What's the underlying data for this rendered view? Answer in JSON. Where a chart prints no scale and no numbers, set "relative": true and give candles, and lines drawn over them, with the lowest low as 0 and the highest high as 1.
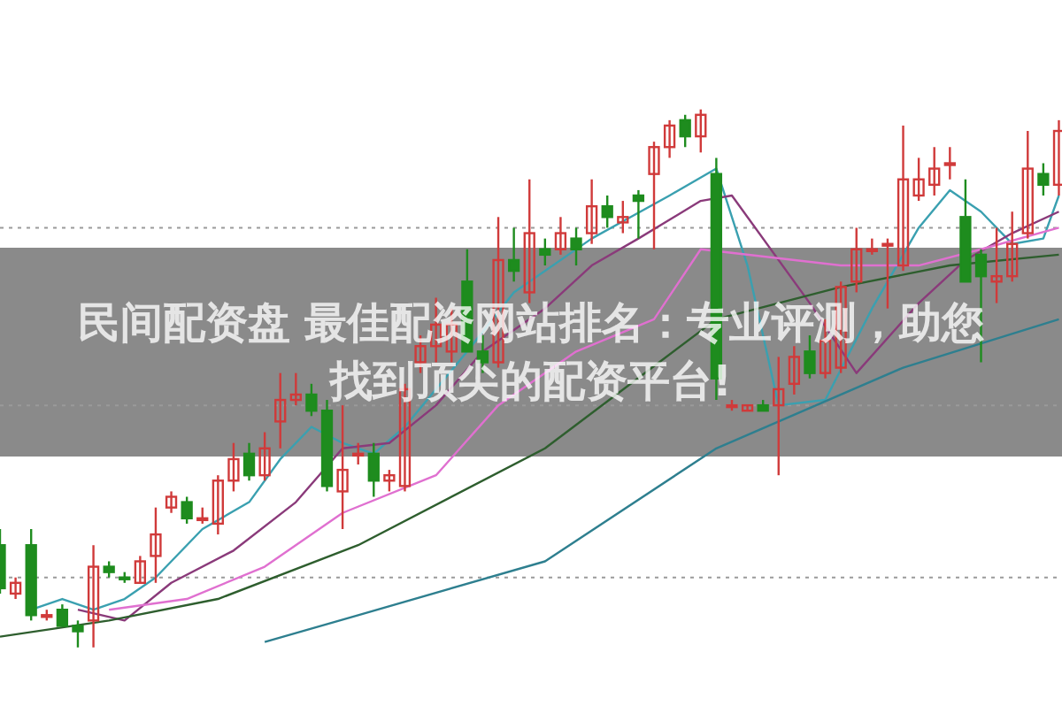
{
  "chart_data": {
    "type": "candlestick",
    "title": "民间配资盘 最佳配资网站排名：专业评测，助您找到顶尖的配资平台!",
    "relative": true,
    "categories": [
      null,
      null,
      null,
      null,
      null,
      null,
      null,
      null,
      null,
      null,
      null,
      null,
      null,
      null,
      null,
      null,
      null,
      null,
      null,
      null,
      null,
      null,
      null,
      null,
      null,
      null,
      null,
      null,
      null,
      null,
      null,
      null,
      null,
      null,
      null,
      null,
      null,
      null,
      null,
      null,
      null,
      null,
      null,
      null,
      null,
      null,
      null,
      null,
      null,
      null,
      null,
      null,
      null,
      null,
      null,
      null,
      null,
      null,
      null,
      null,
      null,
      null,
      null,
      null,
      null,
      null,
      null,
      null,
      null
    ],
    "ohlc": [
      [
        0.19,
        0.22,
        0.1,
        0.11
      ],
      [
        0.1,
        0.13,
        0.09,
        0.12
      ],
      [
        0.19,
        0.22,
        0.05,
        0.06
      ],
      [
        0.06,
        0.07,
        0.05,
        0.06
      ],
      [
        0.07,
        0.08,
        0.04,
        0.04
      ],
      [
        0.04,
        0.05,
        0,
        0.03
      ],
      [
        0.05,
        0.19,
        0,
        0.15
      ],
      [
        0.15,
        0.16,
        0.13,
        0.14
      ],
      [
        0.13,
        0.14,
        0.12,
        0.13
      ],
      [
        0.12,
        0.17,
        0.12,
        0.16
      ],
      [
        0.17,
        0.26,
        0.12,
        0.21
      ],
      [
        0.26,
        0.29,
        0.25,
        0.28
      ],
      [
        0.27,
        0.28,
        0.23,
        0.24
      ],
      [
        0.24,
        0.26,
        0.23,
        0.24
      ],
      [
        0.23,
        0.32,
        0.21,
        0.31
      ],
      [
        0.31,
        0.38,
        0.29,
        0.35
      ],
      [
        0.36,
        0.38,
        0.31,
        0.32
      ],
      [
        0.32,
        0.4,
        0.31,
        0.37
      ],
      [
        0.42,
        0.51,
        0.37,
        0.46
      ],
      [
        0.46,
        0.51,
        0.45,
        0.47
      ],
      [
        0.47,
        0.49,
        0.43,
        0.44
      ],
      [
        0.44,
        0.46,
        0.29,
        0.3
      ],
      [
        0.29,
        0.45,
        0.22,
        0.33
      ],
      [
        0.36,
        0.38,
        0.34,
        0.36
      ],
      [
        0.36,
        0.38,
        0.28,
        0.31
      ],
      [
        0.31,
        0.33,
        0.29,
        0.32
      ],
      [
        0.3,
        0.49,
        0.29,
        0.48
      ],
      [
        0.53,
        0.58,
        0.51,
        0.56
      ],
      [
        0.56,
        0.65,
        0.53,
        0.6
      ],
      [
        0.55,
        0.63,
        0.53,
        0.6
      ],
      [
        0.68,
        0.74,
        0.55,
        0.55
      ],
      [
        0.55,
        0.58,
        0.51,
        0.53
      ],
      [
        0.53,
        0.8,
        0.52,
        0.72
      ],
      [
        0.72,
        0.78,
        0.68,
        0.7
      ],
      [
        0.66,
        0.87,
        0.64,
        0.77
      ],
      [
        0.74,
        0.76,
        0.71,
        0.73
      ],
      [
        0.74,
        0.8,
        0.73,
        0.77
      ],
      [
        0.76,
        0.78,
        0.71,
        0.74
      ],
      [
        0.77,
        0.87,
        0.75,
        0.82
      ],
      [
        0.82,
        0.84,
        0.78,
        0.8
      ],
      [
        0.79,
        0.83,
        0.77,
        0.8
      ],
      [
        0.84,
        0.85,
        0.76,
        0.83
      ],
      [
        0.88,
        0.94,
        0.74,
        0.93
      ],
      [
        0.93,
        0.98,
        0.91,
        0.97
      ],
      [
        0.98,
        0.99,
        0.93,
        0.95
      ],
      [
        0.95,
        1,
        0.92,
        0.99
      ],
      [
        0.88,
        0.91,
        0.46,
        0.5
      ],
      [
        0.45,
        0.46,
        0.44,
        0.45
      ],
      [
        0.44,
        0.45,
        0.44,
        0.45
      ],
      [
        0.45,
        0.46,
        0.44,
        0.44
      ],
      [
        0.45,
        0.54,
        0.32,
        0.48
      ],
      [
        0.49,
        0.56,
        0.47,
        0.54
      ],
      [
        0.55,
        0.58,
        0.5,
        0.51
      ],
      [
        0.51,
        0.61,
        0.5,
        0.57
      ],
      [
        0.52,
        0.68,
        0.51,
        0.67
      ],
      [
        0.68,
        0.78,
        0.66,
        0.74
      ],
      [
        0.74,
        0.76,
        0.73,
        0.74
      ],
      [
        0.75,
        0.76,
        0.63,
        0.75
      ],
      [
        0.71,
        0.97,
        0.7,
        0.87
      ],
      [
        0.84,
        0.91,
        0.83,
        0.87
      ],
      [
        0.86,
        0.93,
        0.84,
        0.89
      ],
      [
        0.9,
        0.93,
        0.87,
        0.9
      ],
      [
        0.8,
        0.87,
        0.68,
        0.68
      ],
      [
        0.73,
        0.74,
        0.53,
        0.69
      ],
      [
        0.68,
        0.78,
        0.64,
        0.69
      ],
      [
        0.69,
        0.81,
        0.68,
        0.75
      ],
      [
        0.77,
        0.96,
        0.76,
        0.89
      ],
      [
        0.88,
        0.9,
        0.84,
        0.86
      ],
      [
        0.86,
        0.98,
        0.84,
        0.96
      ]
    ],
    "colors": [
      "#1e8c1e",
      "#d03a3a",
      "#1e8c1e",
      "#d03a3a",
      "#1e8c1e",
      "#1e8c1e",
      "#d03a3a",
      "#1e8c1e",
      "#1e8c1e",
      "#d03a3a",
      "#d03a3a",
      "#d03a3a",
      "#1e8c1e",
      "#d03a3a",
      "#d03a3a",
      "#d03a3a",
      "#1e8c1e",
      "#d03a3a",
      "#d03a3a",
      "#d03a3a",
      "#1e8c1e",
      "#1e8c1e",
      "#d03a3a",
      "#d03a3a",
      "#1e8c1e",
      "#d03a3a",
      "#d03a3a",
      "#d03a3a",
      "#d03a3a",
      "#d03a3a",
      "#1e8c1e",
      "#1e8c1e",
      "#d03a3a",
      "#1e8c1e",
      "#d03a3a",
      "#1e8c1e",
      "#d03a3a",
      "#1e8c1e",
      "#d03a3a",
      "#1e8c1e",
      "#d03a3a",
      "#1e8c1e",
      "#d03a3a",
      "#d03a3a",
      "#1e8c1e",
      "#d03a3a",
      "#1e8c1e",
      "#d03a3a",
      "#d03a3a",
      "#1e8c1e",
      "#d03a3a",
      "#d03a3a",
      "#1e8c1e",
      "#d03a3a",
      "#d03a3a",
      "#d03a3a",
      "#d03a3a",
      "#d03a3a",
      "#d03a3a",
      "#d03a3a",
      "#d03a3a",
      "#d03a3a",
      "#1e8c1e",
      "#1e8c1e",
      "#d03a3a",
      "#d03a3a",
      "#d03a3a",
      "#1e8c1e",
      "#d03a3a"
    ],
    "series": [
      {
        "type": "line",
        "color": "#3aa0b0",
        "values": [
          null,
          null,
          0.07,
          null,
          0.09,
          null,
          0.07,
          null,
          0.09,
          null,
          0.13,
          null,
          null,
          0.22,
          null,
          null,
          0.27,
          null,
          0.35,
          null,
          0.41,
          null,
          0.38,
          null,
          0.36,
          null,
          0.41,
          null,
          null,
          null,
          0.55,
          null,
          null,
          0.66,
          null,
          null,
          null,
          null,
          0.76,
          null,
          null,
          null,
          null,
          0.84,
          null,
          null,
          0.89,
          null,
          0.71,
          null,
          0.45,
          null,
          null,
          0.46,
          null,
          null,
          0.63,
          null,
          null,
          0.78,
          null,
          0.85,
          null,
          0.81,
          null,
          0.75,
          null,
          0.76,
          0.84
        ]
      },
      {
        "type": "line",
        "color": "#8a3a7a",
        "values": [
          null,
          null,
          null,
          null,
          null,
          0.07,
          null,
          null,
          0.05,
          null,
          null,
          0.12,
          null,
          null,
          null,
          0.18,
          null,
          null,
          null,
          0.27,
          null,
          null,
          0.37,
          null,
          null,
          0.38,
          null,
          null,
          0.45,
          null,
          null,
          0.55,
          null,
          null,
          null,
          0.63,
          null,
          null,
          0.71,
          null,
          null,
          0.76,
          null,
          null,
          null,
          0.83,
          null,
          0.84,
          null,
          null,
          null,
          null,
          0.64,
          null,
          null,
          0.51,
          null,
          null,
          null,
          0.64,
          null,
          null,
          0.72,
          null,
          null,
          0.77,
          null,
          null,
          0.81
        ]
      },
      {
        "type": "line",
        "color": "#e070d0",
        "values": [
          null,
          null,
          null,
          null,
          null,
          null,
          null,
          0.07,
          null,
          null,
          null,
          null,
          0.09,
          null,
          null,
          null,
          null,
          0.15,
          null,
          null,
          null,
          null,
          0.25,
          null,
          null,
          null,
          null,
          null,
          0.32,
          null,
          null,
          null,
          0.45,
          null,
          null,
          null,
          null,
          0.55,
          null,
          null,
          null,
          null,
          0.61,
          null,
          null,
          0.74,
          null,
          null,
          null,
          null,
          null,
          null,
          null,
          null,
          0.71,
          null,
          null,
          null,
          null,
          0.71,
          null,
          null,
          null,
          0.74,
          null,
          null,
          null,
          null,
          0.78
        ]
      },
      {
        "type": "line",
        "color": "#2e5e2e",
        "values": [
          0.02,
          null,
          null,
          null,
          null,
          null,
          null,
          0.05,
          null,
          null,
          null,
          null,
          null,
          null,
          0.09,
          null,
          null,
          null,
          null,
          null,
          null,
          null,
          null,
          0.19,
          null,
          null,
          null,
          null,
          null,
          null,
          null,
          null,
          null,
          null,
          null,
          0.37,
          null,
          null,
          null,
          null,
          null,
          null,
          null,
          null,
          null,
          null,
          0.61,
          null,
          null,
          null,
          null,
          null,
          null,
          null,
          0.67,
          null,
          null,
          null,
          null,
          null,
          null,
          0.71,
          null,
          null,
          null,
          null,
          null,
          null,
          0.73
        ]
      },
      {
        "type": "line",
        "color": "#2e7f8f",
        "values": [
          null,
          null,
          null,
          null,
          null,
          null,
          null,
          null,
          null,
          null,
          null,
          null,
          null,
          null,
          null,
          null,
          null,
          0.01,
          null,
          null,
          null,
          null,
          null,
          0.06,
          null,
          null,
          null,
          null,
          null,
          null,
          null,
          null,
          null,
          null,
          null,
          0.16,
          null,
          null,
          null,
          null,
          null,
          null,
          null,
          null,
          null,
          null,
          0.37,
          null,
          null,
          null,
          null,
          null,
          null,
          null,
          null,
          null,
          null,
          null,
          0.52,
          null,
          null,
          null,
          null,
          null,
          null,
          null,
          null,
          null,
          0.61
        ]
      }
    ],
    "ref_lines": [
      {
        "axis": "y",
        "value": 0.78,
        "color": "#9a9a9a",
        "line_style": "dotted"
      },
      {
        "axis": "y",
        "value": 0.45,
        "color": "#9a9a9a",
        "line_style": "dotted"
      },
      {
        "axis": "y",
        "value": 0.13,
        "color": "#9a9a9a",
        "line_style": "dotted"
      }
    ]
  }
}
